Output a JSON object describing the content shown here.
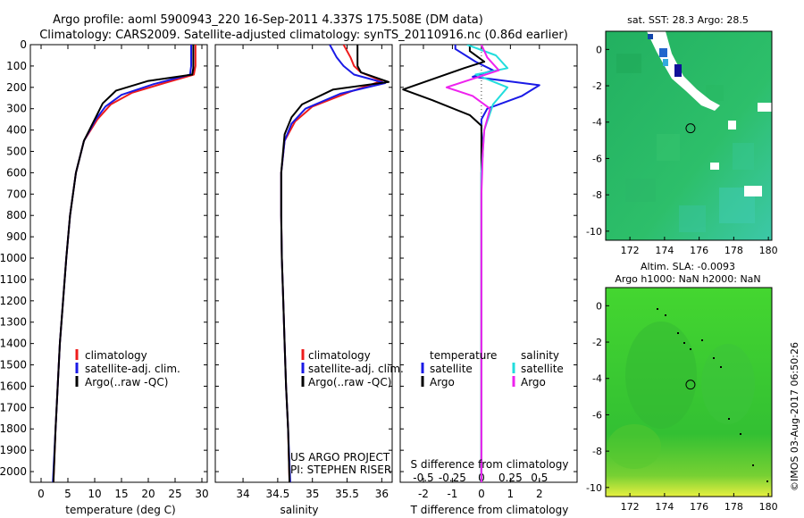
{
  "title_line1": "Argo profile: aoml 5900943_220 16-Sep-2011 4.337S 175.508E (DM data)",
  "title_line2": "Climatology: CARS2009. Satellite-adjusted climatology: synTS_20110916.nc (0.86d earlier)",
  "credit": "US ARGO PROJECT",
  "pi": "PI: STEPHEN RISER",
  "watermark": "©IMOS 03-Aug-2017 06:50:26",
  "colors": {
    "climatology": "#ee1c1c",
    "satellite": "#1a1ae6",
    "argo": "#000000",
    "satellite_s": "#22dddd",
    "argo_s": "#ee22ee",
    "sst_field": "#22bb66",
    "sla_field": "#44cc33"
  },
  "chart_data": [
    {
      "id": "temperature",
      "type": "line",
      "xlabel": "temperature (deg C)",
      "ylabel": "",
      "xlim": [
        -2,
        31
      ],
      "ylim": [
        2050,
        0
      ],
      "x_ticks": [
        0,
        5,
        10,
        15,
        20,
        25,
        30
      ],
      "y_ticks": [
        0,
        100,
        200,
        300,
        400,
        500,
        600,
        700,
        800,
        900,
        1000,
        1100,
        1200,
        1300,
        1400,
        1500,
        1600,
        1700,
        1800,
        1900,
        2000
      ],
      "legend": [
        "climatology",
        "satellite-adj. clim.",
        "Argo(..raw -QC)"
      ],
      "legend_position": "bottom-right",
      "series": [
        {
          "name": "climatology",
          "color": "#ee1c1c",
          "points": [
            [
              28.8,
              0
            ],
            [
              28.8,
              100
            ],
            [
              28.5,
              140
            ],
            [
              23,
              180
            ],
            [
              17,
              225
            ],
            [
              13,
              280
            ],
            [
              10.5,
              350
            ],
            [
              8,
              450
            ],
            [
              6.5,
              600
            ],
            [
              5.4,
              800
            ],
            [
              4.7,
              1000
            ],
            [
              4.1,
              1200
            ],
            [
              3.5,
              1400
            ],
            [
              3.1,
              1600
            ],
            [
              2.7,
              1800
            ],
            [
              2.3,
              2050
            ]
          ]
        },
        {
          "name": "satellite-adj. clim.",
          "color": "#1a1ae6",
          "points": [
            [
              28.0,
              0
            ],
            [
              28.0,
              100
            ],
            [
              27.8,
              140
            ],
            [
              21,
              185
            ],
            [
              15,
              235
            ],
            [
              12,
              290
            ],
            [
              10.2,
              350
            ],
            [
              8,
              450
            ],
            [
              6.5,
              600
            ],
            [
              5.4,
              800
            ],
            [
              4.7,
              1000
            ],
            [
              4.1,
              1200
            ],
            [
              3.5,
              1400
            ],
            [
              3.1,
              1600
            ],
            [
              2.7,
              1800
            ],
            [
              2.2,
              2050
            ]
          ]
        },
        {
          "name": "Argo(..raw -QC)",
          "color": "#000000",
          "points": [
            [
              28.4,
              0
            ],
            [
              28.4,
              110
            ],
            [
              28.2,
              140
            ],
            [
              20,
              170
            ],
            [
              14,
              215
            ],
            [
              11.5,
              275
            ],
            [
              10.2,
              340
            ],
            [
              8,
              450
            ],
            [
              6.5,
              600
            ],
            [
              5.4,
              800
            ],
            [
              4.7,
              1000
            ],
            [
              4.1,
              1200
            ],
            [
              3.5,
              1400
            ],
            [
              3.1,
              1600
            ],
            [
              2.7,
              1800
            ],
            [
              2.3,
              2050
            ]
          ]
        }
      ]
    },
    {
      "id": "salinity",
      "type": "line",
      "xlabel": "salinity",
      "ylabel": "",
      "xlim": [
        33.6,
        36.15
      ],
      "ylim": [
        2050,
        0
      ],
      "x_ticks": [
        34,
        34.5,
        35,
        35.5,
        36
      ],
      "y_ticks": [
        0,
        100,
        200,
        300,
        400,
        500,
        600,
        700,
        800,
        900,
        1000,
        1100,
        1200,
        1300,
        1400,
        1500,
        1600,
        1700,
        1800,
        1900,
        2000
      ],
      "legend": [
        "climatology",
        "satellite-adj. clim.",
        "Argo(..raw -QC)"
      ],
      "legend_position": "bottom-right",
      "series": [
        {
          "name": "climatology",
          "color": "#ee1c1c",
          "points": [
            [
              35.45,
              0
            ],
            [
              35.55,
              60
            ],
            [
              35.6,
              100
            ],
            [
              35.7,
              130
            ],
            [
              36.0,
              170
            ],
            [
              35.55,
              220
            ],
            [
              35.0,
              290
            ],
            [
              34.75,
              360
            ],
            [
              34.6,
              450
            ],
            [
              34.55,
              600
            ],
            [
              34.55,
              800
            ],
            [
              34.56,
              1000
            ],
            [
              34.58,
              1200
            ],
            [
              34.6,
              1400
            ],
            [
              34.62,
              1600
            ],
            [
              34.65,
              1800
            ],
            [
              34.67,
              2050
            ]
          ]
        },
        {
          "name": "satellite-adj. clim.",
          "color": "#1a1ae6",
          "points": [
            [
              35.25,
              0
            ],
            [
              35.35,
              60
            ],
            [
              35.45,
              100
            ],
            [
              35.6,
              140
            ],
            [
              36.05,
              180
            ],
            [
              35.4,
              230
            ],
            [
              34.9,
              300
            ],
            [
              34.7,
              370
            ],
            [
              34.6,
              450
            ],
            [
              34.55,
              600
            ],
            [
              34.55,
              800
            ],
            [
              34.56,
              1000
            ],
            [
              34.58,
              1200
            ],
            [
              34.6,
              1400
            ],
            [
              34.62,
              1600
            ],
            [
              34.65,
              1800
            ],
            [
              34.68,
              2050
            ]
          ]
        },
        {
          "name": "Argo(..raw -QC)",
          "color": "#000000",
          "points": [
            [
              35.65,
              0
            ],
            [
              35.65,
              100
            ],
            [
              35.7,
              130
            ],
            [
              36.1,
              175
            ],
            [
              35.3,
              210
            ],
            [
              34.85,
              280
            ],
            [
              34.7,
              340
            ],
            [
              34.6,
              420
            ],
            [
              34.55,
              600
            ],
            [
              34.55,
              800
            ],
            [
              34.56,
              1000
            ],
            [
              34.58,
              1200
            ],
            [
              34.6,
              1400
            ],
            [
              34.62,
              1600
            ],
            [
              34.65,
              1800
            ],
            [
              34.67,
              2050
            ]
          ]
        }
      ]
    },
    {
      "id": "difference",
      "type": "line",
      "xlabel": "T difference from climatology",
      "xlabel_top": "S difference from climatology",
      "xlim": [
        -2.8,
        3.3
      ],
      "ylim": [
        2050,
        0
      ],
      "x_ticks": [
        -2,
        -1,
        0,
        1,
        2
      ],
      "x_ticks_top": [
        "-0.5",
        "-0.25",
        "0",
        "0.25",
        "0.5"
      ],
      "x_ticks_top_values": [
        -2,
        -1,
        0,
        1,
        2
      ],
      "y_ticks": [
        0,
        100,
        200,
        300,
        400,
        500,
        600,
        700,
        800,
        900,
        1000,
        1100,
        1200,
        1300,
        1400,
        1500,
        1600,
        1700,
        1800,
        1900,
        2000
      ],
      "legend_temperature_title": "temperature",
      "legend_salinity_title": "salinity",
      "legend": [
        "satellite",
        "Argo",
        "satellite",
        "Argo"
      ],
      "legend_position": "bottom",
      "series": [
        {
          "name": "T satellite",
          "color": "#1a1ae6",
          "points": [
            [
              -0.9,
              0
            ],
            [
              -0.9,
              20
            ],
            [
              -0.2,
              80
            ],
            [
              0.4,
              120
            ],
            [
              -0.3,
              150
            ],
            [
              2.0,
              190
            ],
            [
              1.4,
              240
            ],
            [
              0.2,
              300
            ],
            [
              0,
              350
            ],
            [
              0,
              400
            ],
            [
              0.05,
              500
            ],
            [
              0,
              600
            ],
            [
              0,
              800
            ],
            [
              0,
              1000
            ],
            [
              0,
              1500
            ],
            [
              0,
              2050
            ]
          ]
        },
        {
          "name": "T Argo",
          "color": "#000000",
          "points": [
            [
              -0.4,
              0
            ],
            [
              -0.4,
              30
            ],
            [
              0.1,
              80
            ],
            [
              -0.6,
              110
            ],
            [
              -2.7,
              210
            ],
            [
              -1.7,
              260
            ],
            [
              -0.4,
              330
            ],
            [
              0,
              380
            ],
            [
              0,
              500
            ],
            [
              0,
              700
            ],
            [
              0,
              1000
            ],
            [
              0,
              1500
            ],
            [
              0,
              2050
            ]
          ]
        },
        {
          "name": "S satellite",
          "color": "#22dddd",
          "points": [
            [
              -0.5,
              0
            ],
            [
              0.5,
              50
            ],
            [
              0.9,
              110
            ],
            [
              -0.2,
              140
            ],
            [
              0.9,
              200
            ],
            [
              0.4,
              280
            ],
            [
              0.1,
              400
            ],
            [
              0,
              600
            ],
            [
              0,
              1000
            ],
            [
              0,
              1500
            ],
            [
              0,
              2050
            ]
          ]
        },
        {
          "name": "S Argo",
          "color": "#ee22ee",
          "points": [
            [
              0,
              0
            ],
            [
              0.2,
              60
            ],
            [
              0.6,
              120
            ],
            [
              -1.2,
              200
            ],
            [
              -0.3,
              240
            ],
            [
              0.3,
              300
            ],
            [
              0.1,
              400
            ],
            [
              0.05,
              500
            ],
            [
              0,
              700
            ],
            [
              0,
              1000
            ],
            [
              0,
              1500
            ],
            [
              0,
              2050
            ]
          ]
        }
      ]
    },
    {
      "id": "sst_map",
      "type": "heatmap",
      "title": "sat. SST: 28.3 Argo: 28.5",
      "xlim": [
        170.6,
        180.2
      ],
      "ylim": [
        -10.5,
        1.0
      ],
      "x_ticks": [
        172,
        174,
        176,
        178,
        180
      ],
      "y_ticks": [
        0,
        -2,
        -4,
        -6,
        -8,
        -10
      ],
      "argo_position": [
        175.5,
        -4.34
      ]
    },
    {
      "id": "sla_map",
      "type": "heatmap",
      "title": "Altim. SLA: -0.0093",
      "subtitle": "Argo h1000: NaN h2000: NaN",
      "xlim": [
        170.6,
        180.2
      ],
      "ylim": [
        -10.5,
        1.0
      ],
      "x_ticks": [
        172,
        174,
        176,
        178,
        180
      ],
      "y_ticks": [
        0,
        -2,
        -4,
        -6,
        -8,
        -10
      ],
      "argo_position": [
        175.5,
        -4.34
      ]
    }
  ]
}
